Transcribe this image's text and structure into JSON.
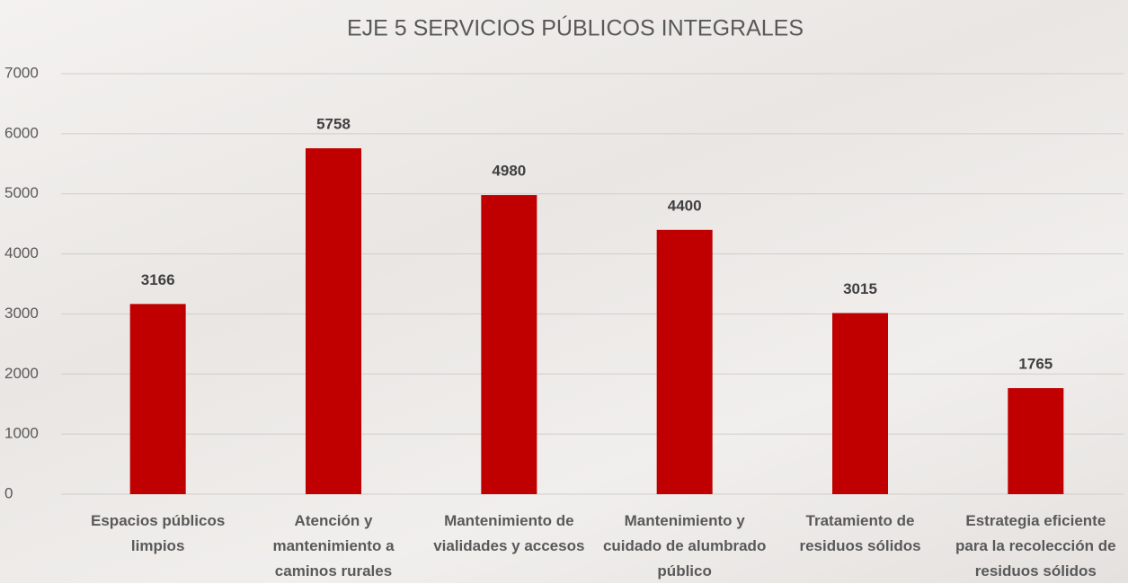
{
  "chart_data": {
    "type": "bar",
    "title": "EJE 5 SERVICIOS PÚBLICOS INTEGRALES",
    "categories": [
      "Espacios públicos limpios",
      "Atención y mantenimiento a caminos rurales",
      "Mantenimiento de vialidades y accesos",
      "Mantenimiento y cuidado de alumbrado público",
      "Tratamiento de residuos sólidos",
      "Estrategia eficiente para la recolección de residuos sólidos"
    ],
    "values": [
      3166,
      5758,
      4980,
      4400,
      3015,
      1765
    ],
    "color": "#c00000",
    "ylim": [
      0,
      7000
    ],
    "yticks": [
      0,
      1000,
      2000,
      3000,
      4000,
      5000,
      6000,
      7000
    ],
    "grid": true
  }
}
